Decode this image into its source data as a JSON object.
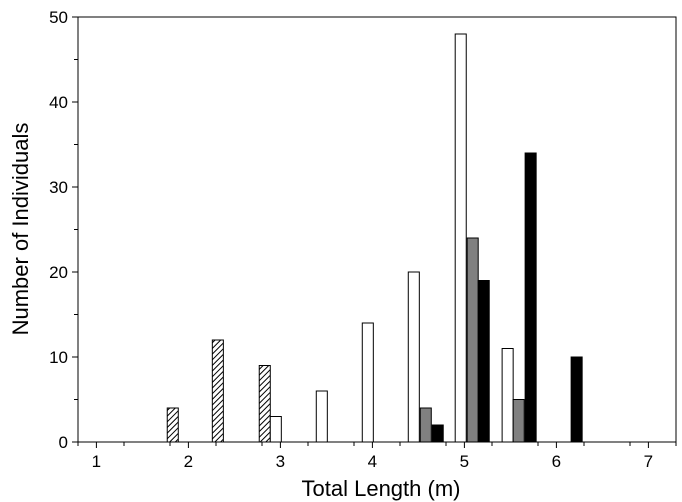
{
  "chart_data": {
    "type": "bar",
    "title": "",
    "xlabel": "Total Length (m)",
    "ylabel": "Number of Individuals",
    "xlim": [
      0.8,
      7.3
    ],
    "ylim": [
      0,
      50
    ],
    "x_ticks": [
      "1",
      "2",
      "3",
      "4",
      "5",
      "6",
      "7"
    ],
    "y_ticks": [
      "0",
      "10",
      "20",
      "30",
      "40",
      "50"
    ],
    "grid": false,
    "legend": "none",
    "bar_width": 0.12,
    "series": [
      {
        "fill": "hatched",
        "color": "#000000",
        "points": [
          {
            "x": 1.83,
            "y": 4
          },
          {
            "x": 2.32,
            "y": 12
          },
          {
            "x": 2.83,
            "y": 9
          }
        ]
      },
      {
        "fill": "white",
        "color": "#ffffff",
        "points": [
          {
            "x": 2.95,
            "y": 3
          },
          {
            "x": 3.45,
            "y": 6
          },
          {
            "x": 3.95,
            "y": 14
          },
          {
            "x": 4.45,
            "y": 20
          },
          {
            "x": 4.96,
            "y": 48
          },
          {
            "x": 5.47,
            "y": 11
          }
        ]
      },
      {
        "fill": "gray",
        "color": "#808080",
        "points": [
          {
            "x": 4.58,
            "y": 4
          },
          {
            "x": 5.09,
            "y": 24
          },
          {
            "x": 5.59,
            "y": 5
          }
        ]
      },
      {
        "fill": "black",
        "color": "#000000",
        "points": [
          {
            "x": 4.71,
            "y": 2
          },
          {
            "x": 5.21,
            "y": 19
          },
          {
            "x": 5.72,
            "y": 34
          },
          {
            "x": 6.22,
            "y": 10
          }
        ]
      }
    ]
  }
}
